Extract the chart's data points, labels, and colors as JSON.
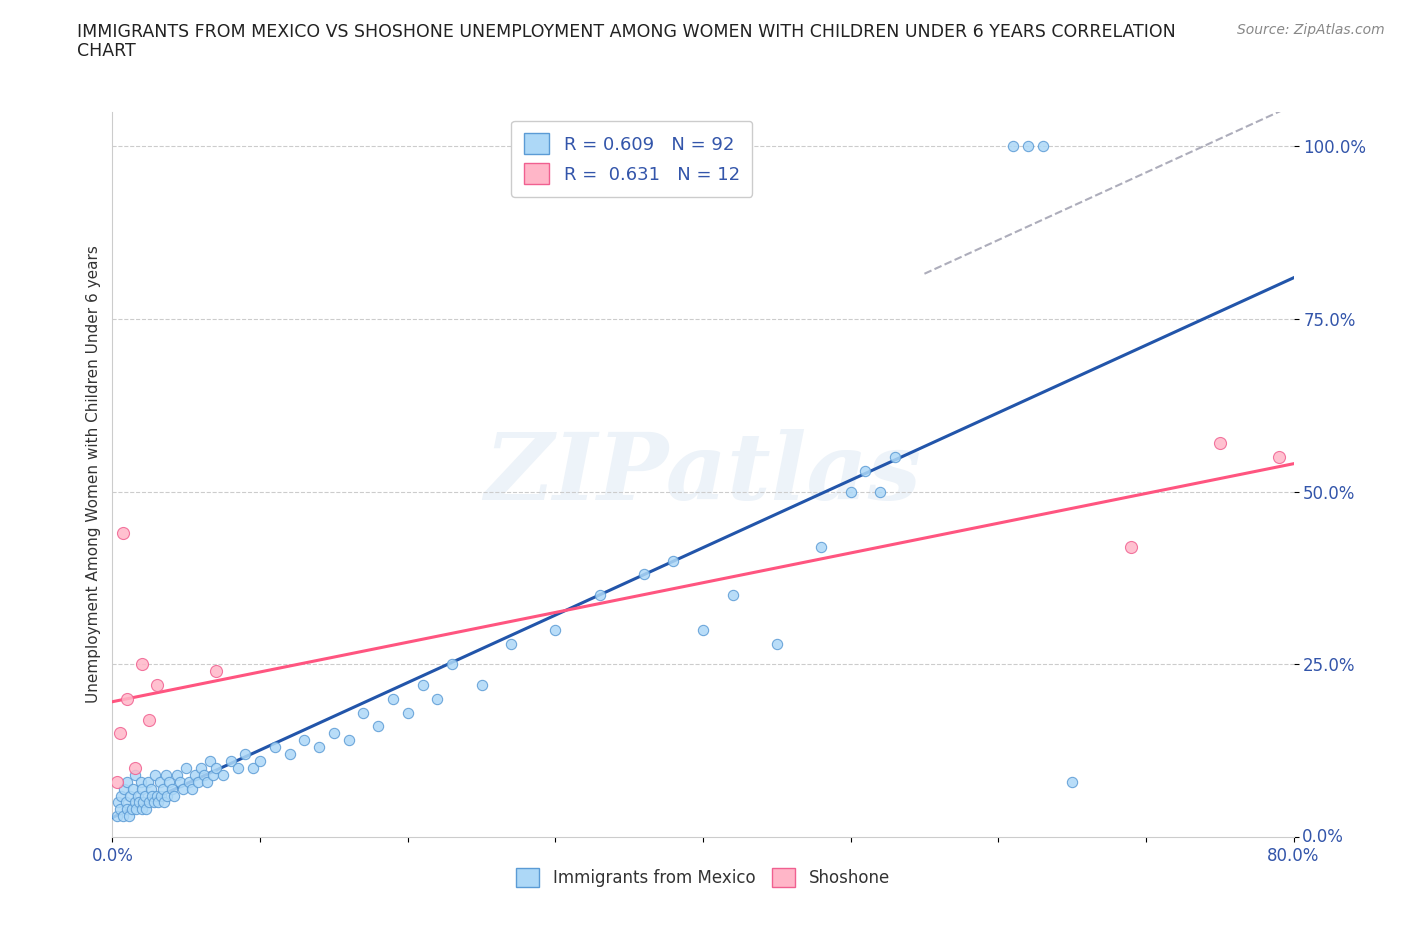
{
  "title_line1": "IMMIGRANTS FROM MEXICO VS SHOSHONE UNEMPLOYMENT AMONG WOMEN WITH CHILDREN UNDER 6 YEARS CORRELATION",
  "title_line2": "CHART",
  "source": "Source: ZipAtlas.com",
  "ylabel": "Unemployment Among Women with Children Under 6 years",
  "xlim": [
    0.0,
    0.8
  ],
  "ylim": [
    0.0,
    1.05
  ],
  "blue_color": "#ADD8F7",
  "blue_edge": "#5B9BD5",
  "pink_color": "#FFB6C8",
  "pink_edge": "#F06090",
  "blue_line_color": "#2255AA",
  "pink_line_color": "#FF5580",
  "watermark": "ZIPatlas",
  "mexico_x": [
    0.003,
    0.004,
    0.005,
    0.006,
    0.007,
    0.008,
    0.009,
    0.01,
    0.01,
    0.011,
    0.012,
    0.013,
    0.014,
    0.015,
    0.015,
    0.016,
    0.017,
    0.018,
    0.019,
    0.02,
    0.02,
    0.021,
    0.022,
    0.023,
    0.024,
    0.025,
    0.026,
    0.027,
    0.028,
    0.029,
    0.03,
    0.031,
    0.032,
    0.033,
    0.034,
    0.035,
    0.036,
    0.037,
    0.038,
    0.04,
    0.042,
    0.044,
    0.046,
    0.048,
    0.05,
    0.052,
    0.054,
    0.056,
    0.058,
    0.06,
    0.062,
    0.064,
    0.066,
    0.068,
    0.07,
    0.075,
    0.08,
    0.085,
    0.09,
    0.095,
    0.1,
    0.11,
    0.12,
    0.13,
    0.14,
    0.15,
    0.16,
    0.17,
    0.18,
    0.19,
    0.2,
    0.21,
    0.22,
    0.23,
    0.25,
    0.27,
    0.3,
    0.33,
    0.36,
    0.38,
    0.4,
    0.42,
    0.45,
    0.48,
    0.5,
    0.51,
    0.52,
    0.53,
    0.61,
    0.62,
    0.63,
    0.65
  ],
  "mexico_y": [
    0.03,
    0.05,
    0.04,
    0.06,
    0.03,
    0.07,
    0.05,
    0.04,
    0.08,
    0.03,
    0.06,
    0.04,
    0.07,
    0.05,
    0.09,
    0.04,
    0.06,
    0.05,
    0.08,
    0.04,
    0.07,
    0.05,
    0.06,
    0.04,
    0.08,
    0.05,
    0.07,
    0.06,
    0.05,
    0.09,
    0.06,
    0.05,
    0.08,
    0.06,
    0.07,
    0.05,
    0.09,
    0.06,
    0.08,
    0.07,
    0.06,
    0.09,
    0.08,
    0.07,
    0.1,
    0.08,
    0.07,
    0.09,
    0.08,
    0.1,
    0.09,
    0.08,
    0.11,
    0.09,
    0.1,
    0.09,
    0.11,
    0.1,
    0.12,
    0.1,
    0.11,
    0.13,
    0.12,
    0.14,
    0.13,
    0.15,
    0.14,
    0.18,
    0.16,
    0.2,
    0.18,
    0.22,
    0.2,
    0.25,
    0.22,
    0.28,
    0.3,
    0.35,
    0.38,
    0.4,
    0.3,
    0.35,
    0.28,
    0.42,
    0.5,
    0.53,
    0.5,
    0.55,
    1.0,
    1.0,
    1.0,
    0.08
  ],
  "shoshone_x": [
    0.003,
    0.005,
    0.007,
    0.01,
    0.015,
    0.02,
    0.025,
    0.03,
    0.07,
    0.69,
    0.75,
    0.79
  ],
  "shoshone_y": [
    0.08,
    0.15,
    0.44,
    0.2,
    0.1,
    0.25,
    0.17,
    0.22,
    0.24,
    0.42,
    0.57,
    0.55
  ]
}
